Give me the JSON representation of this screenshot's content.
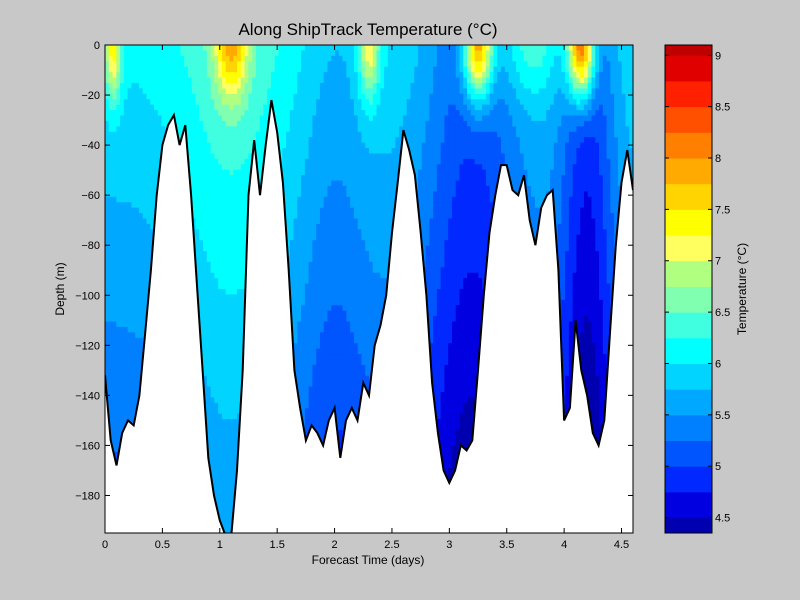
{
  "chart_data": {
    "type": "heatmap",
    "title": "Along ShipTrack Temperature (°C)",
    "xlabel": "Forecast Time (days)",
    "ylabel": "Depth (m)",
    "xlim": [
      0,
      4.6
    ],
    "ylim": [
      -195,
      0
    ],
    "x_ticks": [
      0,
      0.5,
      1,
      1.5,
      2,
      2.5,
      3,
      3.5,
      4,
      4.5
    ],
    "x_tick_labels": [
      "0",
      "0.5",
      "1",
      "1.5",
      "2",
      "2.5",
      "3",
      "3.5",
      "4",
      "4.5"
    ],
    "y_ticks": [
      0,
      -20,
      -40,
      -60,
      -80,
      -100,
      -120,
      -140,
      -160,
      -180
    ],
    "y_tick_labels": [
      "0",
      "−20",
      "−40",
      "−60",
      "−80",
      "−100",
      "−120",
      "−140",
      "−160",
      "−180"
    ],
    "colorbar": {
      "label": "Temperature (°C)",
      "range": [
        4.35,
        9.1
      ],
      "ticks": [
        4.5,
        5,
        5.5,
        6,
        6.5,
        7,
        7.5,
        8,
        8.5,
        9
      ],
      "tick_labels": [
        "4.5",
        "5",
        "5.5",
        "6",
        "6.5",
        "7",
        "7.5",
        "8",
        "8.5",
        "9"
      ],
      "levels": [
        4.25,
        4.5,
        4.75,
        5,
        5.25,
        5.5,
        5.75,
        6,
        6.25,
        6.5,
        6.75,
        7,
        7.25,
        7.5,
        7.75,
        8,
        8.25,
        8.5,
        8.75,
        9
      ],
      "colors": [
        "#0000b0",
        "#0000e0",
        "#0028ff",
        "#0055ff",
        "#0080ff",
        "#00a8ff",
        "#00d4ff",
        "#00ffff",
        "#40ffe0",
        "#80ffb0",
        "#b0ff80",
        "#ffff60",
        "#ffff00",
        "#ffd400",
        "#ffaa00",
        "#ff8000",
        "#ff5000",
        "#ff2000",
        "#e00000",
        "#c00000"
      ]
    },
    "seafloor": {
      "x": [
        0,
        0.05,
        0.1,
        0.15,
        0.2,
        0.25,
        0.3,
        0.35,
        0.4,
        0.45,
        0.5,
        0.55,
        0.6,
        0.65,
        0.7,
        0.75,
        0.8,
        0.85,
        0.9,
        0.95,
        1.0,
        1.05,
        1.1,
        1.15,
        1.2,
        1.25,
        1.3,
        1.35,
        1.4,
        1.45,
        1.5,
        1.55,
        1.6,
        1.65,
        1.7,
        1.75,
        1.8,
        1.85,
        1.9,
        1.95,
        2.0,
        2.05,
        2.1,
        2.15,
        2.2,
        2.25,
        2.3,
        2.35,
        2.4,
        2.45,
        2.5,
        2.55,
        2.6,
        2.65,
        2.7,
        2.75,
        2.8,
        2.85,
        2.9,
        2.95,
        3.0,
        3.05,
        3.1,
        3.15,
        3.2,
        3.25,
        3.3,
        3.35,
        3.4,
        3.45,
        3.5,
        3.55,
        3.6,
        3.65,
        3.7,
        3.75,
        3.8,
        3.85,
        3.9,
        3.95,
        4.0,
        4.05,
        4.1,
        4.15,
        4.2,
        4.25,
        4.3,
        4.35,
        4.4,
        4.45,
        4.5,
        4.55,
        4.6
      ],
      "depth": [
        -132,
        -158,
        -168,
        -155,
        -150,
        -152,
        -140,
        -115,
        -90,
        -60,
        -40,
        -32,
        -28,
        -40,
        -32,
        -60,
        -95,
        -130,
        -165,
        -180,
        -190,
        -196,
        -196,
        -170,
        -130,
        -60,
        -38,
        -60,
        -40,
        -22,
        -35,
        -55,
        -90,
        -130,
        -145,
        -158,
        -152,
        -155,
        -160,
        -150,
        -145,
        -165,
        -150,
        -145,
        -150,
        -135,
        -140,
        -120,
        -112,
        -100,
        -75,
        -55,
        -34,
        -42,
        -52,
        -75,
        -100,
        -135,
        -155,
        -170,
        -175,
        -170,
        -160,
        -162,
        -158,
        -130,
        -100,
        -75,
        -60,
        -48,
        -48,
        -58,
        -60,
        -52,
        -70,
        -80,
        -65,
        -60,
        -58,
        -90,
        -150,
        -145,
        -110,
        -130,
        -140,
        -155,
        -160,
        -150,
        -115,
        -80,
        -55,
        -42,
        -58
      ]
    }
  }
}
